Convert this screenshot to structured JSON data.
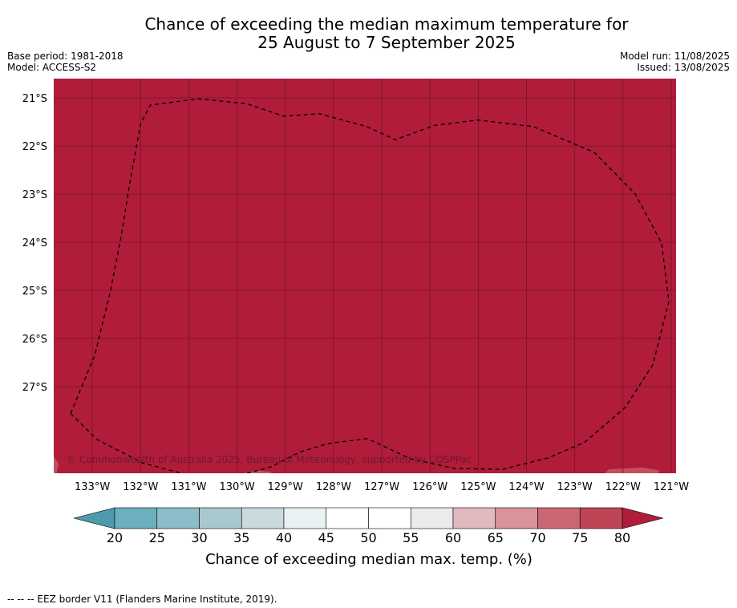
{
  "title_line1": "Chance of exceeding the median maximum temperature for",
  "title_line2": "25 August to 7 September 2025",
  "base_period": "Base period: 1981-2018",
  "model": "Model: ACCESS-S2",
  "model_run": "Model run: 11/08/2025",
  "issued": "Issued: 13/08/2025",
  "copyright": "© Commonwealth of Australia 2025, Bureau of Meteorology, supported by COSPPac",
  "map": {
    "background_color": "#b01c3a",
    "lon_min": -133.8,
    "lon_max": -120.9,
    "lat_top": -20.6,
    "lat_bottom": -28.8,
    "lat_ticks": [
      -21,
      -22,
      -23,
      -24,
      -25,
      -26,
      -27
    ],
    "lon_ticks": [
      -133,
      -132,
      -131,
      -130,
      -129,
      -128,
      -127,
      -126,
      -125,
      -124,
      -123,
      -122,
      -121
    ],
    "lat_labels": [
      "21°S",
      "22°S",
      "23°S",
      "24°S",
      "25°S",
      "26°S",
      "27°S"
    ],
    "lon_labels": [
      "133°W",
      "132°W",
      "131°W",
      "130°W",
      "129°W",
      "128°W",
      "127°W",
      "126°W",
      "125°W",
      "124°W",
      "123°W",
      "122°W",
      "121°W"
    ]
  },
  "eez_border": [
    [
      -133.45,
      -27.56
    ],
    [
      -132.95,
      -26.35
    ],
    [
      -132.63,
      -25.04
    ],
    [
      -132.4,
      -23.86
    ],
    [
      -132.2,
      -22.64
    ],
    [
      -132.0,
      -21.54
    ],
    [
      -131.8,
      -21.15
    ],
    [
      -130.8,
      -21.02
    ],
    [
      -129.8,
      -21.12
    ],
    [
      -129.03,
      -21.38
    ],
    [
      -128.3,
      -21.33
    ],
    [
      -127.3,
      -21.6
    ],
    [
      -126.72,
      -21.87
    ],
    [
      -125.9,
      -21.57
    ],
    [
      -125.0,
      -21.46
    ],
    [
      -123.85,
      -21.6
    ],
    [
      -122.6,
      -22.13
    ],
    [
      -121.75,
      -22.99
    ],
    [
      -121.2,
      -24.02
    ],
    [
      -121.05,
      -25.23
    ],
    [
      -121.38,
      -26.54
    ],
    [
      -121.95,
      -27.43
    ],
    [
      -122.8,
      -28.16
    ],
    [
      -123.55,
      -28.48
    ],
    [
      -124.5,
      -28.72
    ],
    [
      -125.5,
      -28.7
    ],
    [
      -126.4,
      -28.5
    ],
    [
      -127.3,
      -28.08
    ],
    [
      -128.1,
      -28.18
    ],
    [
      -128.7,
      -28.36
    ],
    [
      -129.3,
      -28.67
    ],
    [
      -130.1,
      -28.88
    ],
    [
      -131.0,
      -28.84
    ],
    [
      -131.95,
      -28.59
    ],
    [
      -132.9,
      -28.1
    ],
    [
      -133.45,
      -27.56
    ]
  ],
  "light_patches": [
    [
      [
        -133.8,
        -28.45
      ],
      [
        -133.7,
        -28.6
      ],
      [
        -133.75,
        -28.85
      ],
      [
        -133.8,
        -28.85
      ]
    ],
    [
      [
        -129.95,
        -28.82
      ],
      [
        -129.6,
        -28.74
      ],
      [
        -129.3,
        -28.77
      ],
      [
        -129.25,
        -28.92
      ],
      [
        -129.5,
        -29.0
      ],
      [
        -129.9,
        -29.0
      ]
    ],
    [
      [
        -122.55,
        -29.0
      ],
      [
        -122.3,
        -28.72
      ],
      [
        -121.6,
        -28.68
      ],
      [
        -121.25,
        -28.74
      ],
      [
        -121.3,
        -28.92
      ],
      [
        -121.55,
        -29.0
      ]
    ]
  ],
  "colorbar": {
    "ticks": [
      "20",
      "25",
      "30",
      "35",
      "40",
      "45",
      "50",
      "55",
      "60",
      "65",
      "70",
      "75",
      "80"
    ],
    "colors": [
      "#6cafbf",
      "#8cbcc7",
      "#a9c8cd",
      "#c9dadf",
      "#eaf1f3",
      "#ffffff",
      "#ffffff",
      "#ebebeb",
      "#e0b8be",
      "#d99399",
      "#c96873",
      "#bd4555"
    ],
    "low_extend_color": "#4d9aac",
    "high_extend_color": "#b01c3a",
    "label": "Chance of exceeding median max. temp. (%)"
  },
  "footnote": "-- -- -- EEZ border V11 (Flanders Marine Institute, 2019)."
}
